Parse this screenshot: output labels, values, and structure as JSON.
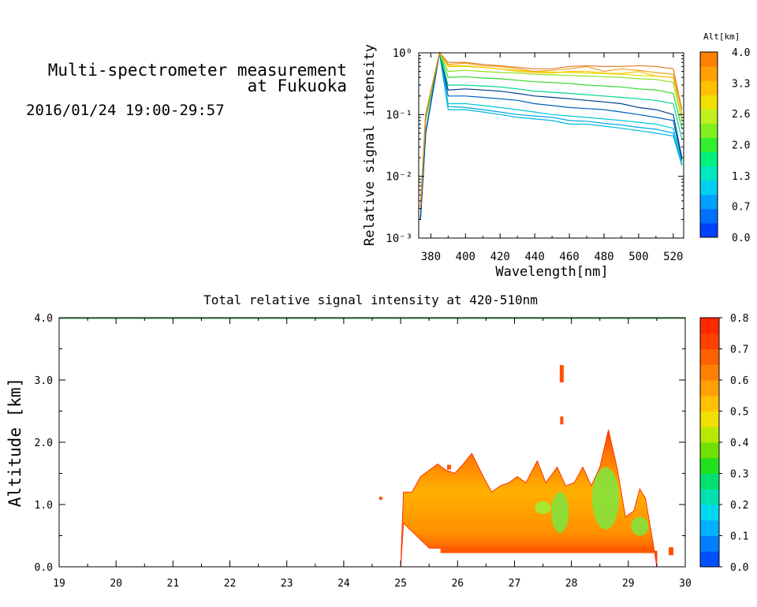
{
  "header": {
    "title_line1": "Multi-spectrometer measurement",
    "title_line2": "at Fukuoka",
    "datetime": "2016/01/24 19:00-29:57"
  },
  "chart_data": [
    {
      "type": "line",
      "title": "",
      "xlabel": "Wavelength[nm]",
      "ylabel": "Relative signal intensity",
      "xlim": [
        373,
        526
      ],
      "ylim": [
        0.001,
        1
      ],
      "y_scale": "log",
      "x_ticks": [
        380,
        400,
        420,
        440,
        460,
        480,
        500,
        520
      ],
      "y_ticks": [
        0.001,
        0.01,
        0.1,
        1
      ],
      "y_tick_labels": [
        "10⁻³",
        "10⁻²",
        "10⁻¹",
        "10⁰"
      ],
      "colorbar": {
        "label": "Alt[km]",
        "min": 0.0,
        "max": 4.0,
        "tick_labels": [
          "0.0",
          "0.7",
          "1.3",
          "2.0",
          "2.6",
          "3.3",
          "4.0"
        ],
        "tick_values": [
          0.0,
          0.67,
          1.33,
          2.0,
          2.67,
          3.33,
          4.0
        ],
        "colors": [
          "#0040ff",
          "#0070ff",
          "#00a0ff",
          "#00d0f0",
          "#00e8c0",
          "#00f080",
          "#30f030",
          "#80f020",
          "#c0f020",
          "#f0e000",
          "#ffc000",
          "#ffa000",
          "#ff8000"
        ]
      },
      "x": [
        374,
        377,
        385,
        390,
        400,
        410,
        420,
        430,
        440,
        450,
        460,
        470,
        480,
        490,
        500,
        510,
        520,
        525
      ],
      "series": [
        {
          "alt": 0.5,
          "color": "#00b8e0",
          "values": [
            0.002,
            0.05,
            1.0,
            0.12,
            0.12,
            0.11,
            0.1,
            0.09,
            0.085,
            0.08,
            0.07,
            0.07,
            0.065,
            0.06,
            0.055,
            0.05,
            0.045,
            0.015
          ]
        },
        {
          "alt": 0.6,
          "color": "#00a8e8",
          "values": [
            0.002,
            0.05,
            1.0,
            0.135,
            0.13,
            0.12,
            0.11,
            0.1,
            0.095,
            0.09,
            0.08,
            0.078,
            0.072,
            0.068,
            0.062,
            0.058,
            0.05,
            0.015
          ]
        },
        {
          "alt": 0.7,
          "color": "#00c8d8",
          "values": [
            0.002,
            0.05,
            1.0,
            0.15,
            0.15,
            0.14,
            0.13,
            0.12,
            0.11,
            0.1,
            0.095,
            0.09,
            0.085,
            0.08,
            0.075,
            0.07,
            0.06,
            0.016
          ]
        },
        {
          "alt": 0.8,
          "color": "#0060c0",
          "values": [
            0.002,
            0.05,
            1.0,
            0.2,
            0.2,
            0.19,
            0.18,
            0.17,
            0.15,
            0.14,
            0.13,
            0.125,
            0.12,
            0.11,
            0.1,
            0.09,
            0.08,
            0.018
          ]
        },
        {
          "alt": 0.9,
          "color": "#004090",
          "values": [
            0.002,
            0.05,
            1.0,
            0.25,
            0.26,
            0.25,
            0.24,
            0.22,
            0.2,
            0.19,
            0.18,
            0.17,
            0.16,
            0.15,
            0.13,
            0.12,
            0.1,
            0.02
          ]
        },
        {
          "alt": 1.3,
          "color": "#00d890",
          "values": [
            0.003,
            0.08,
            1.0,
            0.3,
            0.3,
            0.29,
            0.28,
            0.26,
            0.24,
            0.23,
            0.22,
            0.21,
            0.2,
            0.19,
            0.18,
            0.17,
            0.15,
            0.04
          ]
        },
        {
          "alt": 1.8,
          "color": "#30d830",
          "values": [
            0.003,
            0.08,
            1.0,
            0.4,
            0.41,
            0.39,
            0.38,
            0.36,
            0.34,
            0.33,
            0.32,
            0.3,
            0.29,
            0.28,
            0.26,
            0.25,
            0.22,
            0.06
          ]
        },
        {
          "alt": 2.2,
          "color": "#90e020",
          "values": [
            0.003,
            0.1,
            1.0,
            0.5,
            0.52,
            0.5,
            0.48,
            0.47,
            0.45,
            0.44,
            0.43,
            0.42,
            0.41,
            0.4,
            0.38,
            0.37,
            0.33,
            0.08
          ]
        },
        {
          "alt": 2.6,
          "color": "#e0e000",
          "values": [
            0.003,
            0.1,
            1.0,
            0.6,
            0.6,
            0.58,
            0.55,
            0.52,
            0.5,
            0.49,
            0.48,
            0.47,
            0.46,
            0.45,
            0.43,
            0.42,
            0.4,
            0.1
          ]
        },
        {
          "alt": 3.0,
          "color": "#ffc000",
          "values": [
            0.003,
            0.1,
            1.0,
            0.62,
            0.62,
            0.58,
            0.55,
            0.5,
            0.48,
            0.47,
            0.5,
            0.5,
            0.47,
            0.46,
            0.5,
            0.42,
            0.4,
            0.1
          ]
        },
        {
          "alt": 3.4,
          "color": "#f0a020",
          "values": [
            0.003,
            0.1,
            1.0,
            0.65,
            0.68,
            0.62,
            0.6,
            0.55,
            0.5,
            0.52,
            0.55,
            0.6,
            0.5,
            0.55,
            0.52,
            0.48,
            0.45,
            0.12
          ]
        },
        {
          "alt": 3.7,
          "color": "#e08030",
          "values": [
            0.003,
            0.1,
            1.0,
            0.7,
            0.7,
            0.65,
            0.62,
            0.58,
            0.55,
            0.55,
            0.6,
            0.62,
            0.6,
            0.6,
            0.62,
            0.6,
            0.55,
            0.12
          ]
        }
      ]
    },
    {
      "type": "heatmap",
      "title": "Total relative signal intensity at 420-510nm",
      "xlabel": "",
      "ylabel": "Altitude [km]",
      "xlim": [
        19,
        30
      ],
      "ylim": [
        0.0,
        4.0
      ],
      "x_ticks": [
        19,
        20,
        21,
        22,
        23,
        24,
        25,
        26,
        27,
        28,
        29,
        30
      ],
      "y_ticks": [
        0.0,
        1.0,
        2.0,
        3.0,
        4.0
      ],
      "y_tick_labels": [
        "0.0",
        "1.0",
        "2.0",
        "3.0",
        "4.0"
      ],
      "colorbar": {
        "min": 0.0,
        "max": 0.8,
        "tick_labels": [
          "0.0",
          "0.1",
          "0.2",
          "0.3",
          "0.4",
          "0.5",
          "0.6",
          "0.7",
          "0.8"
        ],
        "colors": [
          "#0050ff",
          "#0080ff",
          "#00b0ff",
          "#00d8f0",
          "#00e0b0",
          "#00e070",
          "#20e020",
          "#70e000",
          "#b8e800",
          "#f0e000",
          "#ffc000",
          "#ffa000",
          "#ff8000",
          "#ff6000",
          "#ff4000",
          "#ff2800"
        ]
      },
      "cloud_top_km": [
        {
          "x": 25.0,
          "top": 0.0
        },
        {
          "x": 25.05,
          "top": 1.2
        },
        {
          "x": 25.2,
          "top": 1.2
        },
        {
          "x": 25.35,
          "top": 1.45
        },
        {
          "x": 25.5,
          "top": 1.55
        },
        {
          "x": 25.65,
          "top": 1.65
        },
        {
          "x": 25.8,
          "top": 1.55
        },
        {
          "x": 25.95,
          "top": 1.5
        },
        {
          "x": 26.1,
          "top": 1.65
        },
        {
          "x": 26.25,
          "top": 1.82
        },
        {
          "x": 26.45,
          "top": 1.45
        },
        {
          "x": 26.6,
          "top": 1.2
        },
        {
          "x": 26.75,
          "top": 1.3
        },
        {
          "x": 26.9,
          "top": 1.35
        },
        {
          "x": 27.05,
          "top": 1.45
        },
        {
          "x": 27.2,
          "top": 1.35
        },
        {
          "x": 27.4,
          "top": 1.7
        },
        {
          "x": 27.55,
          "top": 1.35
        },
        {
          "x": 27.75,
          "top": 1.6
        },
        {
          "x": 27.9,
          "top": 1.3
        },
        {
          "x": 28.05,
          "top": 1.35
        },
        {
          "x": 28.2,
          "top": 1.6
        },
        {
          "x": 28.35,
          "top": 1.3
        },
        {
          "x": 28.5,
          "top": 1.6
        },
        {
          "x": 28.65,
          "top": 2.2
        },
        {
          "x": 28.8,
          "top": 1.6
        },
        {
          "x": 28.95,
          "top": 0.8
        },
        {
          "x": 29.1,
          "top": 0.9
        },
        {
          "x": 29.2,
          "top": 1.25
        },
        {
          "x": 29.3,
          "top": 1.1
        },
        {
          "x": 29.45,
          "top": 0.3
        },
        {
          "x": 29.5,
          "top": 0.0
        }
      ],
      "green_core_km": [
        {
          "x": 27.8,
          "bottom": 0.55,
          "top": 1.2
        },
        {
          "x": 28.6,
          "bottom": 0.6,
          "top": 1.6
        },
        {
          "x": 29.2,
          "bottom": 0.5,
          "top": 0.8
        }
      ]
    }
  ]
}
